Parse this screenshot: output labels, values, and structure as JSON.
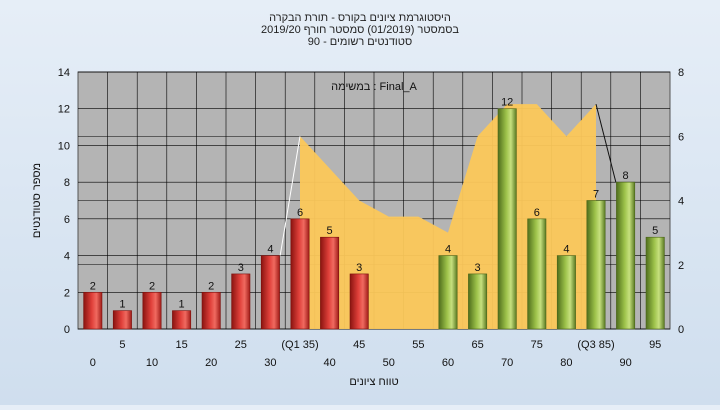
{
  "chart_data": {
    "type": "bar",
    "title_lines": [
      "היסטוגרמת ציונים בקורס - תורת הבקרה",
      "בסמסטר  (01/2019)  סמסטר חורף 2019/20",
      "סטודנטים רשומים - 90"
    ],
    "annotation": "במשימה : Final_A",
    "xlabel": "טווח ציונים",
    "ylabel": "מספר סטודנטים",
    "ylim": [
      0,
      14
    ],
    "y_ticks": [
      "0",
      "2",
      "4",
      "6",
      "8",
      "10",
      "12",
      "14"
    ],
    "y2lim": [
      0,
      8
    ],
    "y2_ticks": [
      "0",
      "2",
      "4",
      "6",
      "8"
    ],
    "x_tick_labels_lower": [
      "0",
      "10",
      "20",
      "30",
      "40",
      "50",
      "60",
      "70",
      "80",
      "90"
    ],
    "x_tick_labels_upper": [
      "5",
      "15",
      "25",
      "(Q1 35)",
      "45",
      "55",
      "65",
      "75",
      "(Q3 85)",
      "95"
    ],
    "bins": [
      "0",
      "5",
      "10",
      "15",
      "20",
      "25",
      "30",
      "35",
      "40",
      "45",
      "50",
      "55",
      "60",
      "65",
      "70",
      "75",
      "80",
      "85",
      "90",
      "95"
    ],
    "values": [
      2,
      1,
      2,
      1,
      2,
      3,
      4,
      6,
      5,
      3,
      0,
      0,
      4,
      3,
      12,
      6,
      4,
      7,
      8,
      5
    ],
    "bar_groups": [
      "red",
      "red",
      "red",
      "red",
      "red",
      "red",
      "red",
      "red",
      "red",
      "red",
      "none",
      "none",
      "green",
      "green",
      "green",
      "green",
      "green",
      "green",
      "green",
      "green"
    ],
    "area_secondary_values": [
      null,
      null,
      null,
      null,
      null,
      null,
      null,
      6,
      5,
      4,
      3.5,
      3.5,
      3,
      6,
      7,
      7,
      6,
      7,
      null,
      null
    ],
    "colors": {
      "red_bar": "#e0403a",
      "green_bar": "#9dc24a",
      "area": "#fcc85a",
      "plot_bg": "#b4b4b4",
      "grid": "#000000"
    },
    "grid": true
  }
}
